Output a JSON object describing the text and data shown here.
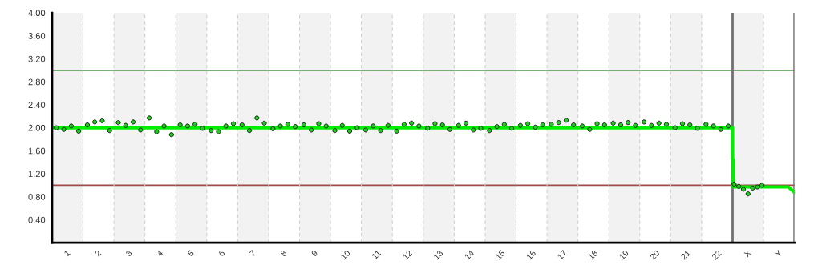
{
  "chart_data": {
    "type": "scatter",
    "xlim": [
      0.5,
      24.5
    ],
    "ylim": [
      0,
      4
    ],
    "xticks": [
      1,
      2,
      3,
      4,
      5,
      6,
      7,
      8,
      9,
      10,
      11,
      12,
      13,
      14,
      15,
      16,
      17,
      18,
      19,
      20,
      21,
      22,
      {
        "value": 23,
        "label": "X"
      },
      {
        "value": 24,
        "label": "Y"
      }
    ],
    "yticks": [
      {
        "value": 0.4,
        "label": "0.40"
      },
      {
        "value": 0.8,
        "label": "0.80"
      },
      {
        "value": 1.2,
        "label": "1.20"
      },
      {
        "value": 1.6,
        "label": "1.60"
      },
      {
        "value": 2.0,
        "label": "2.00"
      },
      {
        "value": 2.4,
        "label": "2.40"
      },
      {
        "value": 2.8,
        "label": "2.80"
      },
      {
        "value": 3.2,
        "label": "3.20"
      },
      {
        "value": 3.6,
        "label": "3.60"
      },
      {
        "value": 4.0,
        "label": "4.00"
      }
    ],
    "grid": false,
    "marker": "circle",
    "bands": [
      {
        "axis": "x",
        "from": 0.5,
        "to": 1.5,
        "color": "#f2f2f2"
      },
      {
        "axis": "x",
        "from": 2.5,
        "to": 3.5,
        "color": "#f2f2f2"
      },
      {
        "axis": "x",
        "from": 4.5,
        "to": 5.5,
        "color": "#f2f2f2"
      },
      {
        "axis": "x",
        "from": 6.5,
        "to": 7.5,
        "color": "#f2f2f2"
      },
      {
        "axis": "x",
        "from": 8.5,
        "to": 9.5,
        "color": "#f2f2f2"
      },
      {
        "axis": "x",
        "from": 10.5,
        "to": 11.5,
        "color": "#f2f2f2"
      },
      {
        "axis": "x",
        "from": 12.5,
        "to": 13.5,
        "color": "#f2f2f2"
      },
      {
        "axis": "x",
        "from": 14.5,
        "to": 15.5,
        "color": "#f2f2f2"
      },
      {
        "axis": "x",
        "from": 16.5,
        "to": 17.5,
        "color": "#f2f2f2"
      },
      {
        "axis": "x",
        "from": 18.5,
        "to": 19.5,
        "color": "#f2f2f2"
      },
      {
        "axis": "x",
        "from": 20.5,
        "to": 21.5,
        "color": "#f2f2f2"
      },
      {
        "axis": "x",
        "from": 22.5,
        "to": 23.5,
        "color": "#f2f2f2"
      }
    ],
    "ref_lines": [
      {
        "axis": "y",
        "value": 3.0,
        "color": "#4a9a4a",
        "line_style": "solid"
      },
      {
        "axis": "y",
        "value": 1.0,
        "color": "#a04a4a",
        "line_style": "solid"
      },
      {
        "axis": "x",
        "value": 1.5,
        "color": "#d0d0d0",
        "line_style": "dashed"
      },
      {
        "axis": "x",
        "value": 2.5,
        "color": "#d0d0d0",
        "line_style": "dashed"
      },
      {
        "axis": "x",
        "value": 3.5,
        "color": "#d0d0d0",
        "line_style": "dashed"
      },
      {
        "axis": "x",
        "value": 4.5,
        "color": "#d0d0d0",
        "line_style": "dashed"
      },
      {
        "axis": "x",
        "value": 5.5,
        "color": "#d0d0d0",
        "line_style": "dashed"
      },
      {
        "axis": "x",
        "value": 6.5,
        "color": "#d0d0d0",
        "line_style": "dashed"
      },
      {
        "axis": "x",
        "value": 7.5,
        "color": "#d0d0d0",
        "line_style": "dashed"
      },
      {
        "axis": "x",
        "value": 8.5,
        "color": "#d0d0d0",
        "line_style": "dashed"
      },
      {
        "axis": "x",
        "value": 9.5,
        "color": "#d0d0d0",
        "line_style": "dashed"
      },
      {
        "axis": "x",
        "value": 10.5,
        "color": "#d0d0d0",
        "line_style": "dashed"
      },
      {
        "axis": "x",
        "value": 11.5,
        "color": "#d0d0d0",
        "line_style": "dashed"
      },
      {
        "axis": "x",
        "value": 12.5,
        "color": "#d0d0d0",
        "line_style": "dashed"
      },
      {
        "axis": "x",
        "value": 13.5,
        "color": "#d0d0d0",
        "line_style": "dashed"
      },
      {
        "axis": "x",
        "value": 14.5,
        "color": "#d0d0d0",
        "line_style": "dashed"
      },
      {
        "axis": "x",
        "value": 15.5,
        "color": "#d0d0d0",
        "line_style": "dashed"
      },
      {
        "axis": "x",
        "value": 16.5,
        "color": "#d0d0d0",
        "line_style": "dashed"
      },
      {
        "axis": "x",
        "value": 17.5,
        "color": "#d0d0d0",
        "line_style": "dashed"
      },
      {
        "axis": "x",
        "value": 18.5,
        "color": "#d0d0d0",
        "line_style": "dashed"
      },
      {
        "axis": "x",
        "value": 19.5,
        "color": "#d0d0d0",
        "line_style": "dashed"
      },
      {
        "axis": "x",
        "value": 20.5,
        "color": "#d0d0d0",
        "line_style": "dashed"
      },
      {
        "axis": "x",
        "value": 21.5,
        "color": "#d0d0d0",
        "line_style": "dashed"
      },
      {
        "axis": "x",
        "value": 23.5,
        "color": "#d0d0d0",
        "line_style": "dashed"
      },
      {
        "axis": "x",
        "value": 22.5,
        "color": "#707070",
        "line_style": "solid"
      },
      {
        "axis": "x",
        "value": 24.5,
        "color": "#707070",
        "line_style": "solid"
      }
    ],
    "series": [
      {
        "type": "line",
        "color": "#00ee00",
        "marker": "none",
        "x": [
          0.5,
          22.5,
          22.5,
          22.52,
          22.52,
          24.3,
          24.5
        ],
        "values": [
          2.0,
          2.0,
          1.45,
          1.45,
          0.97,
          0.97,
          0.88
        ]
      },
      {
        "color": "#22cc22",
        "x": [
          0.64,
          0.88,
          1.12,
          1.36,
          1.64,
          1.88,
          2.12,
          2.36,
          2.64,
          2.88,
          3.12,
          3.36,
          3.64,
          3.88,
          4.12,
          4.36,
          4.64,
          4.88,
          5.12,
          5.36,
          5.64,
          5.88,
          6.12,
          6.36,
          6.64,
          6.88,
          7.12,
          7.36,
          7.64,
          7.88,
          8.12,
          8.36,
          8.64,
          8.88,
          9.12,
          9.36,
          9.64,
          9.88,
          10.12,
          10.36,
          10.64,
          10.88,
          11.12,
          11.36,
          11.64,
          11.88,
          12.12,
          12.36,
          12.64,
          12.88,
          13.12,
          13.36,
          13.64,
          13.88,
          14.12,
          14.36,
          14.64,
          14.88,
          15.12,
          15.36,
          15.64,
          15.88,
          16.12,
          16.36,
          16.64,
          16.88,
          17.12,
          17.36,
          17.64,
          17.88,
          18.12,
          18.36,
          18.64,
          18.88,
          19.12,
          19.36,
          19.64,
          19.88,
          20.12,
          20.36,
          20.64,
          20.88,
          21.12,
          21.36,
          21.64,
          21.88,
          22.12,
          22.36,
          22.55,
          22.7,
          22.85,
          23.0,
          23.15,
          23.3,
          23.45
        ],
        "values": [
          2.0,
          1.97,
          2.03,
          1.94,
          2.05,
          2.1,
          2.12,
          1.95,
          2.09,
          2.04,
          2.1,
          1.96,
          2.17,
          1.93,
          2.03,
          1.88,
          2.05,
          2.03,
          2.06,
          1.99,
          1.95,
          1.93,
          2.03,
          2.07,
          2.05,
          1.95,
          2.17,
          2.08,
          1.98,
          2.03,
          2.06,
          2.02,
          2.05,
          1.96,
          2.07,
          2.03,
          1.95,
          2.04,
          1.94,
          2.0,
          1.96,
          2.03,
          1.95,
          2.04,
          1.94,
          2.06,
          2.08,
          2.03,
          1.99,
          2.07,
          2.05,
          1.97,
          2.04,
          2.08,
          1.96,
          1.99,
          1.95,
          2.02,
          2.06,
          1.99,
          2.04,
          2.07,
          2.01,
          2.05,
          2.06,
          2.09,
          2.13,
          2.05,
          2.03,
          1.97,
          2.07,
          2.05,
          2.08,
          2.05,
          2.09,
          2.04,
          2.1,
          2.04,
          2.08,
          2.06,
          2.0,
          2.07,
          2.05,
          1.99,
          2.06,
          2.03,
          1.97,
          2.03,
          1.02,
          0.98,
          0.93,
          0.85,
          0.95,
          0.97,
          1.0
        ]
      }
    ]
  }
}
